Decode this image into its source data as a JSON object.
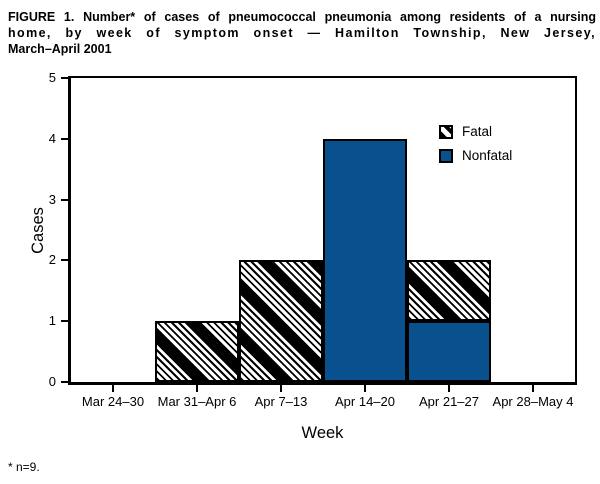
{
  "figure": {
    "title_lines": [
      "FIGURE 1. Number* of cases of pneumococcal pneumonia among residents of a nursing",
      "home, by week of symptom onset — Hamilton Township, New Jersey,",
      "March–April 2001"
    ],
    "footnote": "* n=9."
  },
  "chart_data": {
    "type": "bar",
    "stacked": true,
    "categories": [
      "Mar 24–30",
      "Mar 31–Apr 6",
      "Apr 7–13",
      "Apr 14–20",
      "Apr 21–27",
      "Apr 28–May 4"
    ],
    "series": [
      {
        "name": "Fatal",
        "style": "hatched",
        "pattern": "black-diagonal-hatch",
        "values": [
          0,
          1,
          2,
          0,
          1,
          0
        ]
      },
      {
        "name": "Nonfatal",
        "style": "solid",
        "color": "#09508f",
        "values": [
          0,
          0,
          0,
          4,
          1,
          0
        ]
      }
    ],
    "xlabel": "Week",
    "ylabel": "Cases",
    "ylim": [
      0,
      5
    ],
    "yticks": [
      0,
      1,
      2,
      3,
      4,
      5
    ],
    "legend_position": "top-right-inside",
    "grid": false,
    "axis_color": "#000000"
  }
}
